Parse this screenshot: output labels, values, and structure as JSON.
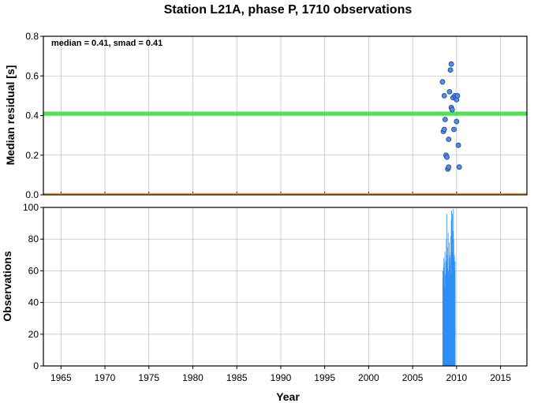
{
  "chart_data": {
    "title": "Station L21A, phase P, 1710 observations",
    "annotation": "median = 0.41, smad = 0.41",
    "xlabel": "Year",
    "xlim": [
      1963,
      2018
    ],
    "xticks": [
      "1965",
      "1970",
      "1975",
      "1980",
      "1985",
      "1990",
      "1995",
      "2000",
      "2005",
      "2010",
      "2015"
    ],
    "grid": true,
    "panels": [
      {
        "type": "scatter",
        "ylabel": "Median residual [s]",
        "ylim": [
          0,
          0.8
        ],
        "yticks": [
          "0.0",
          "0.2",
          "0.4",
          "0.6",
          "0.8"
        ],
        "median_line": 0.41,
        "zero_line": 0.0,
        "colors": {
          "points": "#4e8fe8",
          "median": "#39e23a",
          "zero": "#f5a623"
        },
        "points": [
          [
            2008.4,
            0.57
          ],
          [
            2008.6,
            0.5
          ],
          [
            2008.5,
            0.32
          ],
          [
            2008.6,
            0.33
          ],
          [
            2008.7,
            0.38
          ],
          [
            2008.8,
            0.2
          ],
          [
            2008.9,
            0.19
          ],
          [
            2009.0,
            0.13
          ],
          [
            2009.1,
            0.14
          ],
          [
            2009.1,
            0.28
          ],
          [
            2009.2,
            0.52
          ],
          [
            2009.3,
            0.63
          ],
          [
            2009.4,
            0.66
          ],
          [
            2009.4,
            0.44
          ],
          [
            2009.5,
            0.43
          ],
          [
            2009.6,
            0.49
          ],
          [
            2009.7,
            0.33
          ],
          [
            2009.8,
            0.5
          ],
          [
            2009.9,
            0.49
          ],
          [
            2010.0,
            0.48
          ],
          [
            2010.1,
            0.5
          ],
          [
            2010.0,
            0.37
          ],
          [
            2010.2,
            0.25
          ],
          [
            2010.3,
            0.14
          ]
        ]
      },
      {
        "type": "bar",
        "ylabel": "Observations",
        "ylim": [
          0,
          100
        ],
        "yticks": [
          "0",
          "20",
          "40",
          "60",
          "80",
          "100"
        ],
        "colors": {
          "bars": "#2b90f5"
        },
        "x_start": 2008.4,
        "x_step": 0.04,
        "values": [
          60,
          55,
          62,
          68,
          50,
          65,
          72,
          48,
          58,
          66,
          80,
          96,
          70,
          62,
          75,
          84,
          60,
          55,
          78,
          68,
          64,
          70,
          58,
          82,
          92,
          98,
          88,
          96,
          72,
          85,
          99,
          80,
          67,
          70,
          60,
          66
        ]
      }
    ]
  }
}
